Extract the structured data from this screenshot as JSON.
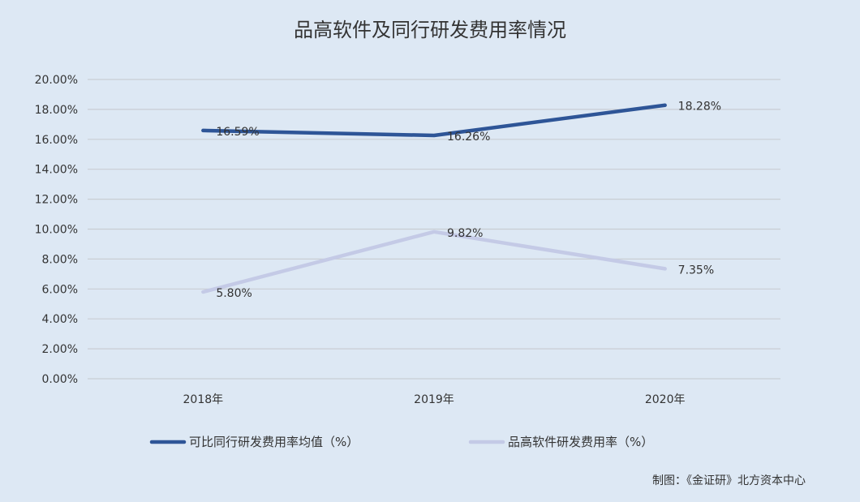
{
  "chart_data": {
    "type": "line",
    "title": "品高软件及同行研发费用率情况",
    "categories": [
      "2018年",
      "2019年",
      "2020年"
    ],
    "ylim": [
      0,
      20
    ],
    "yticks": [
      "0.00%",
      "2.00%",
      "4.00%",
      "6.00%",
      "8.00%",
      "10.00%",
      "12.00%",
      "14.00%",
      "16.00%",
      "18.00%",
      "20.00%"
    ],
    "grid": true,
    "legend_position": "bottom",
    "series": [
      {
        "name": "可比同行研发费用率均值（%）",
        "values": [
          16.59,
          16.26,
          18.28
        ],
        "labels": [
          "16.59%",
          "16.26%",
          "18.28%"
        ],
        "color": "#2e5597"
      },
      {
        "name": "品高软件研发费用率（%）",
        "values": [
          5.8,
          9.82,
          7.35
        ],
        "labels": [
          "5.80%",
          "9.82%",
          "7.35%"
        ],
        "color": "#c4cae6"
      }
    ]
  },
  "credit": "制图：《金证研》北方资本中心"
}
